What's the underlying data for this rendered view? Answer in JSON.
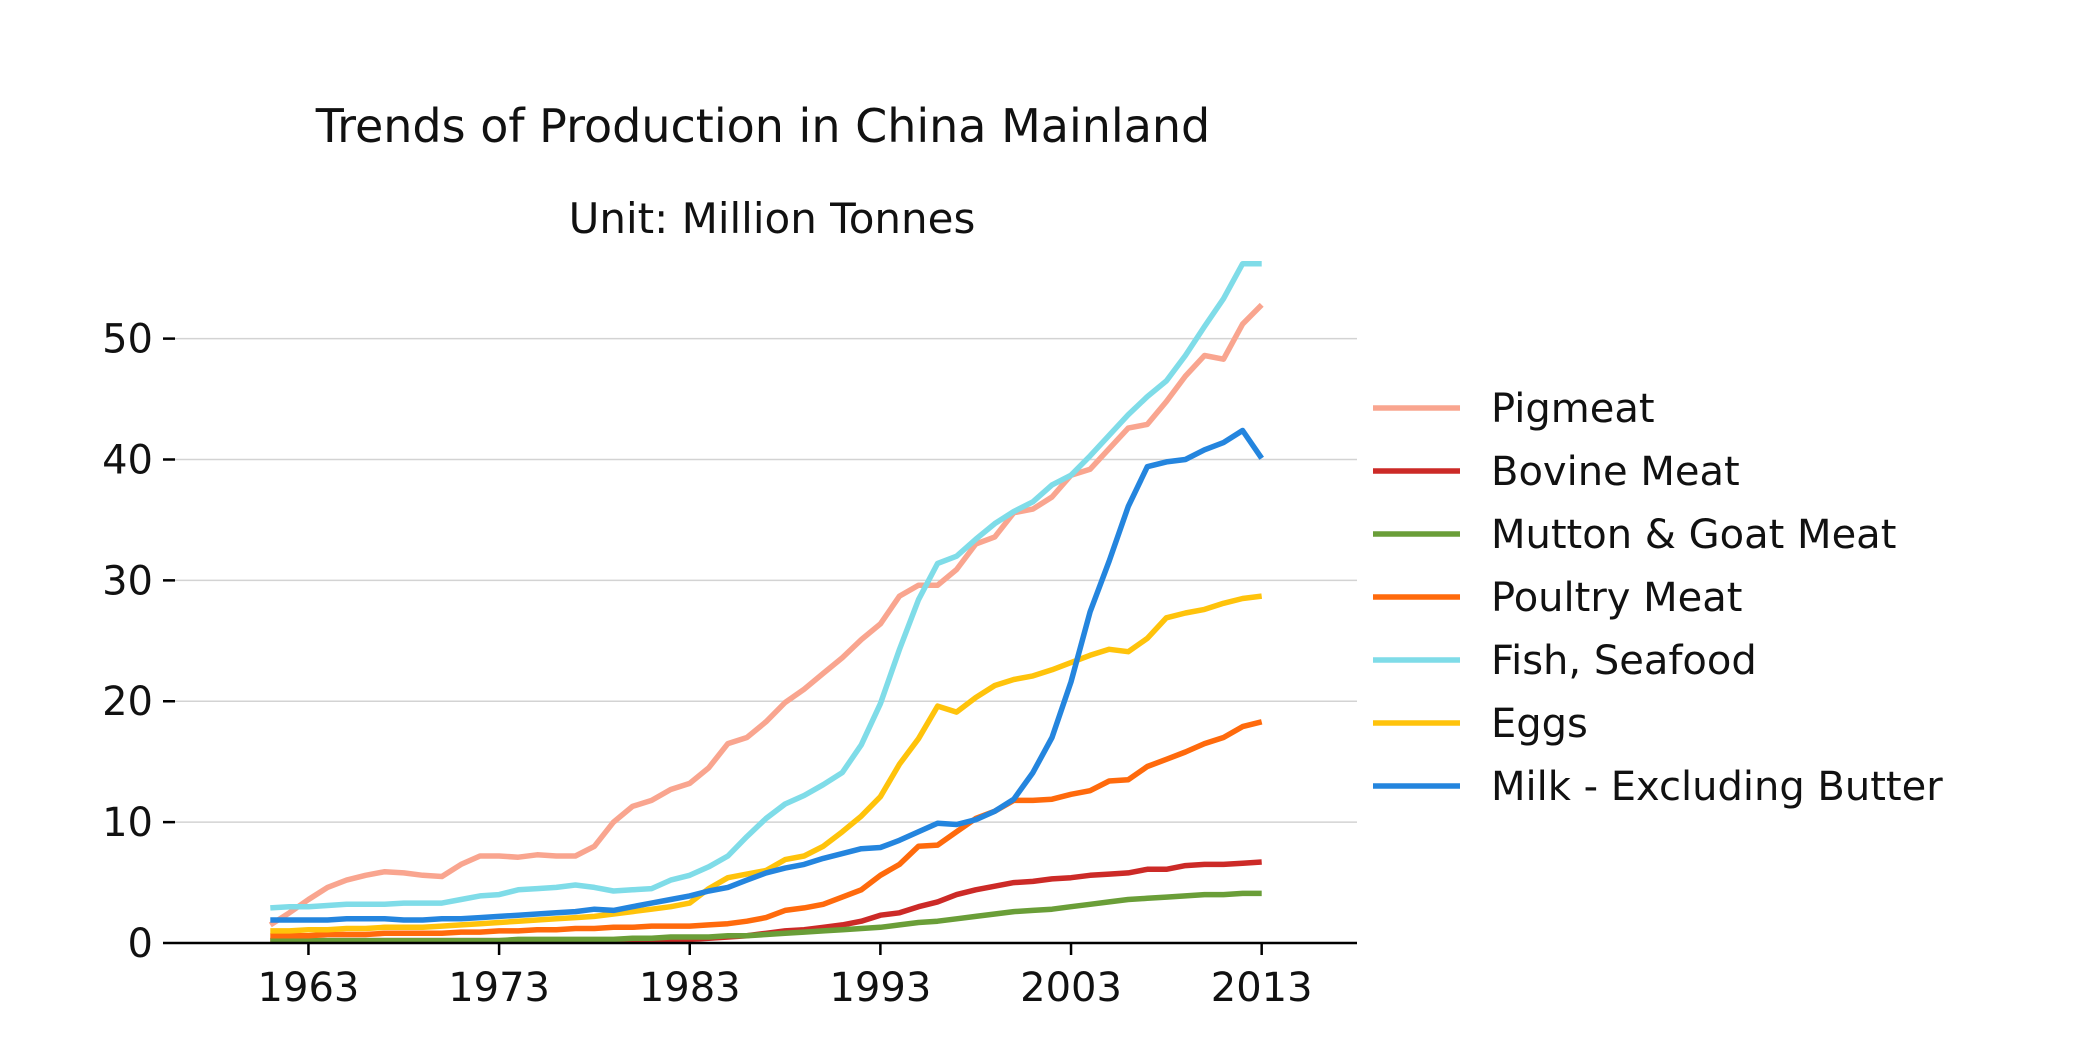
{
  "chart_data": {
    "type": "line",
    "title": "Trends of Production in China Mainland",
    "subtitle": "Unit: Million Tonnes",
    "xlabel": "",
    "ylabel": "",
    "xlim": [
      1956,
      2018
    ],
    "ylim": [
      0,
      57
    ],
    "x_ticks": [
      1963,
      1973,
      1983,
      1993,
      2003,
      2013
    ],
    "y_ticks": [
      0,
      10,
      20,
      30,
      40,
      50
    ],
    "grid": "horizontal",
    "legend_position": "right",
    "x": [
      1961,
      1962,
      1963,
      1964,
      1965,
      1966,
      1967,
      1968,
      1969,
      1970,
      1971,
      1972,
      1973,
      1974,
      1975,
      1976,
      1977,
      1978,
      1979,
      1980,
      1981,
      1982,
      1983,
      1984,
      1985,
      1986,
      1987,
      1988,
      1989,
      1990,
      1991,
      1992,
      1993,
      1994,
      1995,
      1996,
      1997,
      1998,
      1999,
      2000,
      2001,
      2002,
      2003,
      2004,
      2005,
      2006,
      2007,
      2008,
      2009,
      2010,
      2011,
      2012,
      2013
    ],
    "series": [
      {
        "name": "Pigmeat",
        "color": "#f9a58f",
        "values": [
          1.5,
          2.5,
          3.6,
          4.6,
          5.2,
          5.6,
          5.9,
          5.8,
          5.6,
          5.5,
          6.5,
          7.2,
          7.2,
          7.1,
          7.3,
          7.2,
          7.2,
          8.0,
          10.0,
          11.3,
          11.8,
          12.7,
          13.2,
          14.5,
          16.5,
          17.0,
          18.3,
          19.9,
          21.0,
          22.3,
          23.6,
          25.1,
          26.4,
          28.7,
          29.6,
          29.6,
          30.9,
          33.0,
          33.6,
          35.6,
          35.9,
          36.9,
          38.7,
          39.2,
          40.9,
          42.6,
          42.9,
          44.8,
          46.9,
          48.6,
          48.3,
          51.2,
          52.8
        ]
      },
      {
        "name": "Bovine Meat",
        "color": "#cc2a27",
        "values": [
          0.2,
          0.2,
          0.2,
          0.2,
          0.2,
          0.2,
          0.2,
          0.2,
          0.2,
          0.2,
          0.2,
          0.2,
          0.2,
          0.2,
          0.2,
          0.2,
          0.2,
          0.2,
          0.2,
          0.3,
          0.3,
          0.3,
          0.3,
          0.4,
          0.5,
          0.6,
          0.8,
          1.0,
          1.1,
          1.3,
          1.5,
          1.8,
          2.3,
          2.5,
          3.0,
          3.4,
          4.0,
          4.4,
          4.7,
          5.0,
          5.1,
          5.3,
          5.4,
          5.6,
          5.7,
          5.8,
          6.1,
          6.1,
          6.4,
          6.5,
          6.5,
          6.6,
          6.7
        ]
      },
      {
        "name": "Mutton & Goat Meat",
        "color": "#6a9e38",
        "values": [
          0.2,
          0.2,
          0.2,
          0.2,
          0.2,
          0.2,
          0.2,
          0.2,
          0.2,
          0.2,
          0.2,
          0.2,
          0.2,
          0.3,
          0.3,
          0.3,
          0.3,
          0.3,
          0.3,
          0.4,
          0.4,
          0.5,
          0.5,
          0.5,
          0.6,
          0.6,
          0.7,
          0.8,
          0.9,
          1.0,
          1.1,
          1.2,
          1.3,
          1.5,
          1.7,
          1.8,
          2.0,
          2.2,
          2.4,
          2.6,
          2.7,
          2.8,
          3.0,
          3.2,
          3.4,
          3.6,
          3.7,
          3.8,
          3.9,
          4.0,
          4.0,
          4.1,
          4.1
        ]
      },
      {
        "name": "Poultry Meat",
        "color": "#ff6a0c",
        "values": [
          0.6,
          0.6,
          0.6,
          0.7,
          0.7,
          0.7,
          0.8,
          0.8,
          0.8,
          0.8,
          0.9,
          0.9,
          1.0,
          1.0,
          1.1,
          1.1,
          1.2,
          1.2,
          1.3,
          1.3,
          1.4,
          1.4,
          1.4,
          1.5,
          1.6,
          1.8,
          2.1,
          2.7,
          2.9,
          3.2,
          3.8,
          4.4,
          5.6,
          6.5,
          8.0,
          8.1,
          9.2,
          10.3,
          10.9,
          11.8,
          11.8,
          11.9,
          12.3,
          12.6,
          13.4,
          13.5,
          14.6,
          15.2,
          15.8,
          16.5,
          17.0,
          17.9,
          18.3
        ]
      },
      {
        "name": "Fish, Seafood",
        "color": "#7fdce8",
        "values": [
          2.9,
          3.0,
          3.0,
          3.1,
          3.2,
          3.2,
          3.2,
          3.3,
          3.3,
          3.3,
          3.6,
          3.9,
          4.0,
          4.4,
          4.5,
          4.6,
          4.8,
          4.6,
          4.3,
          4.4,
          4.5,
          5.2,
          5.6,
          6.3,
          7.2,
          8.8,
          10.3,
          11.5,
          12.2,
          13.1,
          14.1,
          16.4,
          19.8,
          24.3,
          28.4,
          31.4,
          32.0,
          33.4,
          34.7,
          35.7,
          36.5,
          37.9,
          38.7,
          40.3,
          42.0,
          43.7,
          45.2,
          46.5,
          48.6,
          51.0,
          53.3,
          56.2,
          56.2
        ]
      },
      {
        "name": "Eggs",
        "color": "#ffc30b",
        "values": [
          1.0,
          1.0,
          1.1,
          1.1,
          1.2,
          1.2,
          1.3,
          1.3,
          1.3,
          1.4,
          1.5,
          1.6,
          1.7,
          1.8,
          1.9,
          2.0,
          2.1,
          2.2,
          2.4,
          2.6,
          2.8,
          3.0,
          3.3,
          4.5,
          5.4,
          5.7,
          6.0,
          6.9,
          7.2,
          8.0,
          9.2,
          10.5,
          12.1,
          14.8,
          16.9,
          19.6,
          19.1,
          20.3,
          21.3,
          21.8,
          22.1,
          22.6,
          23.2,
          23.8,
          24.3,
          24.1,
          25.2,
          26.9,
          27.3,
          27.6,
          28.1,
          28.5,
          28.7
        ]
      },
      {
        "name": "Milk - Excluding Butter",
        "color": "#2485de",
        "values": [
          1.9,
          1.9,
          1.9,
          1.9,
          2.0,
          2.0,
          2.0,
          1.9,
          1.9,
          2.0,
          2.0,
          2.1,
          2.2,
          2.3,
          2.4,
          2.5,
          2.6,
          2.8,
          2.7,
          3.0,
          3.3,
          3.6,
          3.9,
          4.3,
          4.6,
          5.2,
          5.8,
          6.2,
          6.5,
          7.0,
          7.4,
          7.8,
          7.9,
          8.5,
          9.2,
          9.9,
          9.8,
          10.2,
          10.9,
          11.9,
          14.1,
          17.0,
          21.6,
          27.4,
          31.6,
          36.1,
          39.4,
          39.8,
          40.0,
          40.8,
          41.4,
          42.4,
          40.1
        ]
      }
    ]
  }
}
